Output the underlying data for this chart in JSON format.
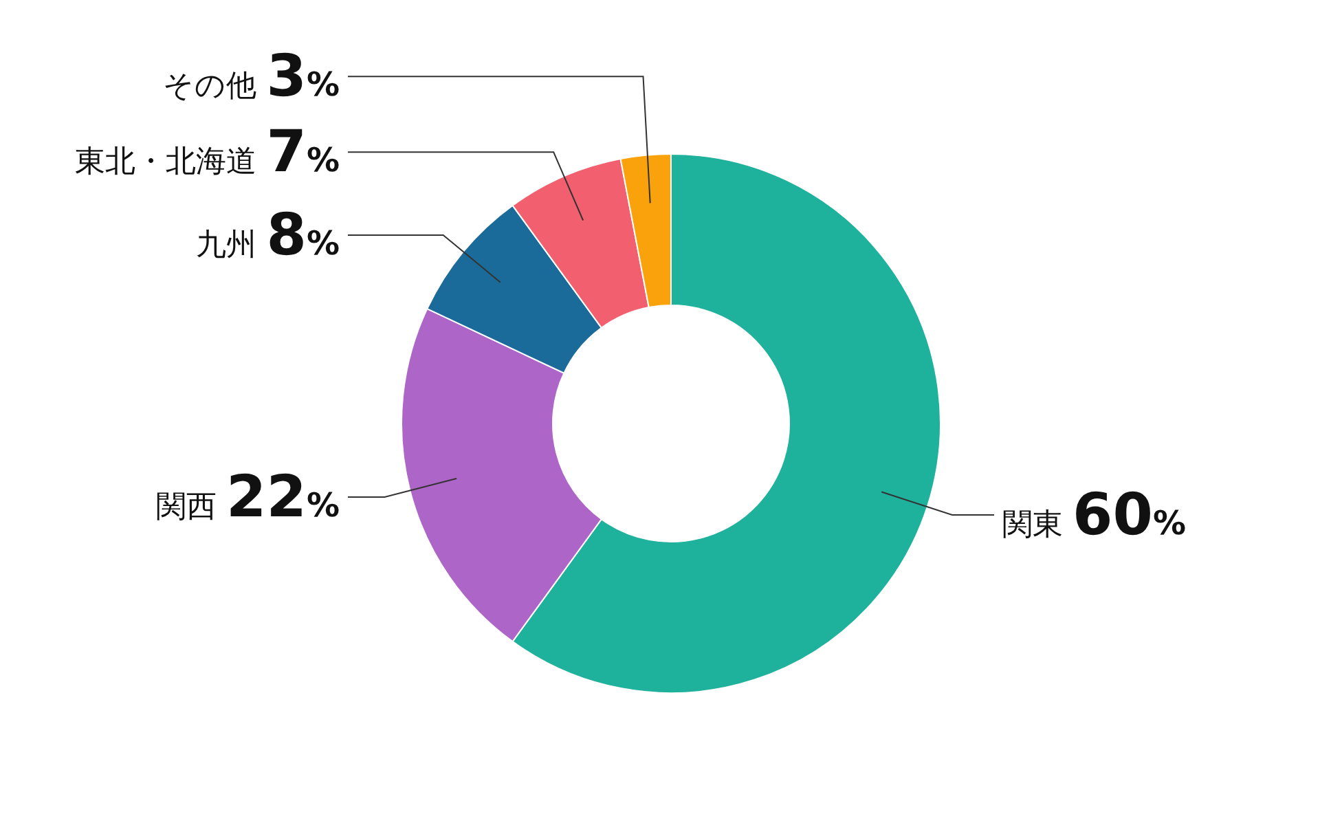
{
  "chart_data": {
    "type": "donut",
    "categories": [
      "関東",
      "関西",
      "九州",
      "東北・北海道",
      "その他"
    ],
    "values": [
      60,
      22,
      8,
      7,
      3
    ],
    "value_labels": [
      "60%",
      "22%",
      "8%",
      "7%",
      "3%"
    ],
    "colors": [
      "#1eb19c",
      "#ad66c8",
      "#1a6b99",
      "#f25f6e",
      "#f9a20c"
    ]
  }
}
